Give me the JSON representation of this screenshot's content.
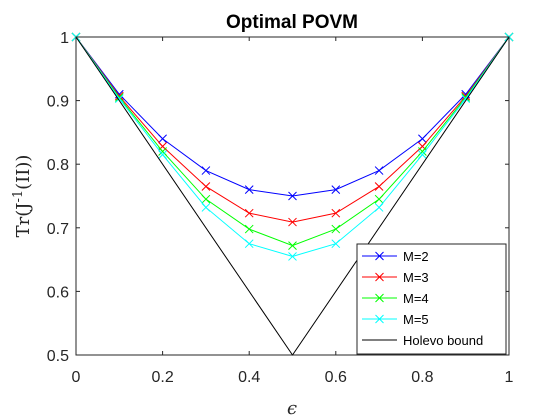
{
  "chart_data": {
    "type": "line",
    "title": "Optimal POVM",
    "xlabel": "ϵ",
    "ylabel": "Tr(J-1(II))",
    "xlim": [
      0,
      1
    ],
    "ylim": [
      0.5,
      1
    ],
    "xticks": [
      "0",
      "0.2",
      "0.4",
      "0.6",
      "0.8",
      "1"
    ],
    "yticks": [
      "0.5",
      "0.6",
      "0.7",
      "0.8",
      "0.9",
      "1"
    ],
    "grid": false,
    "legend_position": "bottom-right",
    "x": [
      0,
      0.1,
      0.2,
      0.3,
      0.4,
      0.5,
      0.6,
      0.7,
      0.8,
      0.9,
      1
    ],
    "series": [
      {
        "name": "M=2",
        "color": "#0000ff",
        "marker": "x",
        "values": [
          1.0,
          0.91,
          0.84,
          0.79,
          0.76,
          0.75,
          0.76,
          0.79,
          0.84,
          0.91,
          1.0
        ]
      },
      {
        "name": "M=3",
        "color": "#ff0000",
        "marker": "x",
        "values": [
          1.0,
          0.907,
          0.828,
          0.765,
          0.723,
          0.709,
          0.723,
          0.765,
          0.828,
          0.907,
          1.0
        ]
      },
      {
        "name": "M=4",
        "color": "#00ff00",
        "marker": "x",
        "values": [
          1.0,
          0.905,
          0.82,
          0.745,
          0.698,
          0.672,
          0.698,
          0.745,
          0.82,
          0.905,
          1.0
        ]
      },
      {
        "name": "M=5",
        "color": "#00ffff",
        "marker": "x",
        "values": [
          1.0,
          0.903,
          0.815,
          0.732,
          0.675,
          0.655,
          0.675,
          0.732,
          0.815,
          0.903,
          1.0
        ]
      },
      {
        "name": "Holevo bound",
        "color": "#000000",
        "marker": "none",
        "x": [
          0,
          0.5,
          1
        ],
        "values": [
          1.0,
          0.5,
          1.0
        ]
      }
    ]
  }
}
